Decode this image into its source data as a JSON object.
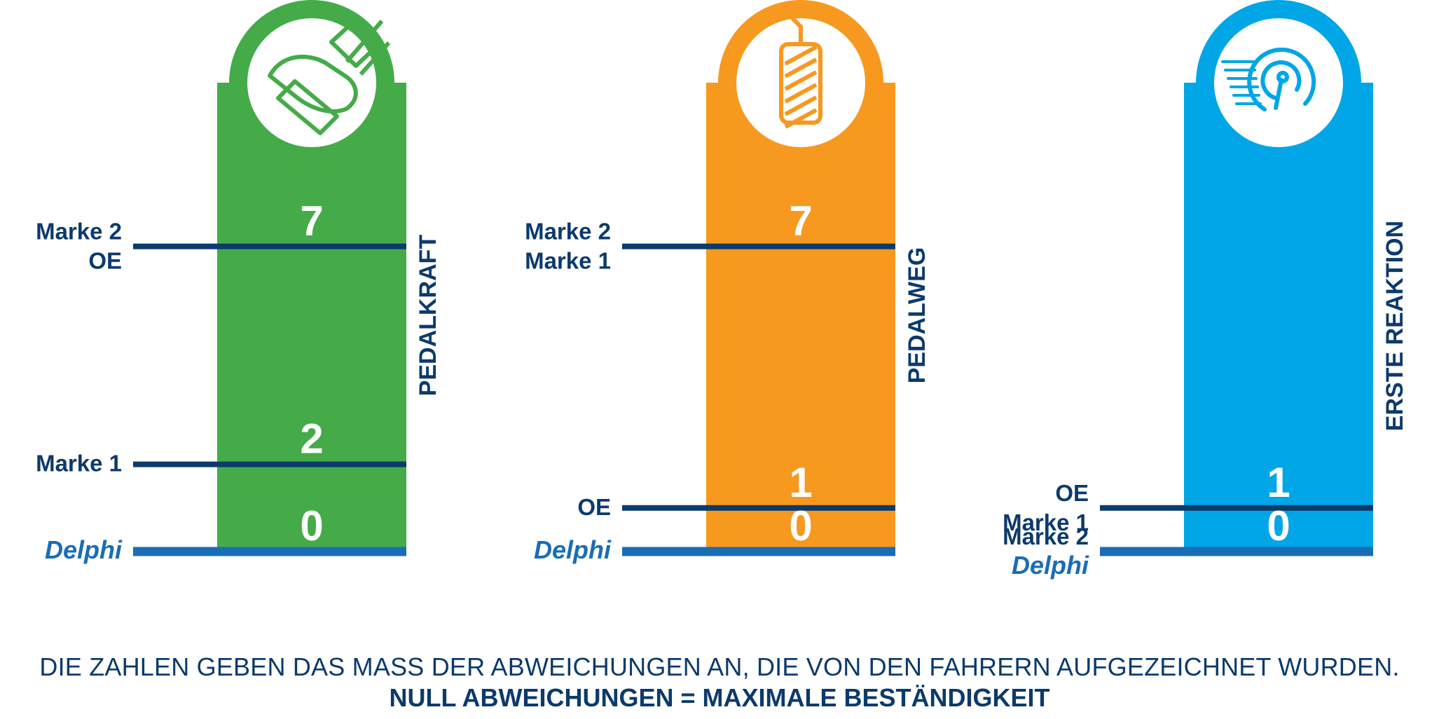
{
  "chart_data": {
    "type": "bar",
    "description_units": "Abweichungen",
    "panels": [
      {
        "metric": "PEDALKRAFT",
        "color": "#44ab48",
        "icon": "foot-on-pedal-icon",
        "ylim": [
          0,
          7
        ],
        "levels": [
          {
            "value": 7,
            "labels": [
              "Marke 2",
              "OE"
            ]
          },
          {
            "value": 2,
            "labels": [
              "Marke 1"
            ]
          },
          {
            "value": 0,
            "labels": [
              "Delphi"
            ]
          }
        ]
      },
      {
        "metric": "PEDALWEG",
        "color": "#f7981f",
        "icon": "brake-pedal-icon",
        "ylim": [
          0,
          7
        ],
        "levels": [
          {
            "value": 7,
            "labels": [
              "Marke 2",
              "Marke 1"
            ]
          },
          {
            "value": 1,
            "labels": [
              "OE"
            ]
          },
          {
            "value": 0,
            "labels": [
              "Delphi"
            ]
          }
        ]
      },
      {
        "metric": "ERSTE REAKTION",
        "color": "#00a6e6",
        "icon": "speed-gauge-icon",
        "ylim": [
          0,
          7
        ],
        "levels": [
          {
            "value": 1,
            "labels": [
              "OE",
              "Marke 1"
            ]
          },
          {
            "value": 0,
            "labels": [
              "Marke 2",
              "Delphi"
            ]
          }
        ]
      }
    ]
  },
  "footer": {
    "line1": "DIE ZAHLEN GEBEN DAS MASS DER ABWEICHUNGEN AN, DIE VON DEN FAHRERN AUFGEZEICHNET WURDEN.",
    "line2": "NULL ABWEICHUNGEN = MAXIMALE BESTÄNDIGKEIT"
  },
  "colors": {
    "navy": "#0c3a6b",
    "delphi_blue": "#1a6db4"
  }
}
